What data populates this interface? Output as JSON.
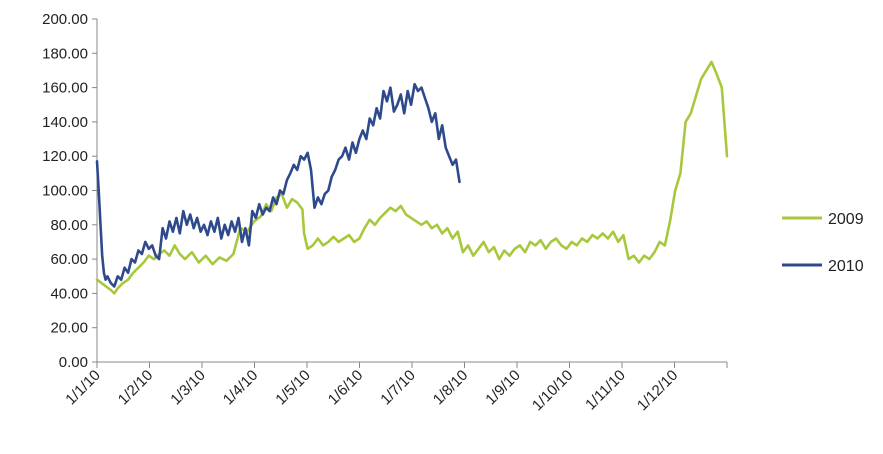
{
  "chart_data": {
    "type": "line",
    "title": "",
    "xlabel": "",
    "ylabel": "",
    "ylim": [
      0,
      200
    ],
    "y_ticks": [
      "0.00",
      "20.00",
      "40.00",
      "60.00",
      "80.00",
      "100.00",
      "120.00",
      "140.00",
      "160.00",
      "180.00",
      "200.00"
    ],
    "x_ticks": [
      "1/1/10",
      "1/2/10",
      "1/3/10",
      "1/4/10",
      "1/5/10",
      "1/6/10",
      "1/7/10",
      "1/8/10",
      "1/9/10",
      "1/10/10",
      "1/11/10",
      "1/12/10"
    ],
    "grid": false,
    "legend_position": "right",
    "series": [
      {
        "name": "2009",
        "color": "#a8c83c",
        "x": [
          0,
          4,
          8,
          10,
          12,
          15,
          18,
          21,
          24,
          27,
          30,
          33,
          36,
          39,
          42,
          45,
          48,
          51,
          55,
          59,
          63,
          67,
          71,
          75,
          79,
          83,
          87,
          91,
          95,
          98,
          101,
          104,
          107,
          110,
          113,
          116,
          119,
          120,
          122,
          125,
          128,
          131,
          134,
          137,
          140,
          143,
          146,
          149,
          152,
          155,
          158,
          161,
          164,
          167,
          170,
          173,
          176,
          179,
          182,
          185,
          188,
          191,
          194,
          197,
          200,
          203,
          206,
          209,
          212,
          215,
          218,
          221,
          224,
          227,
          230,
          233,
          236,
          239,
          242,
          245,
          248,
          251,
          254,
          257,
          260,
          263,
          266,
          269,
          272,
          275,
          278,
          281,
          284,
          287,
          290,
          293,
          296,
          299,
          302,
          305,
          308,
          311,
          314,
          317,
          320,
          323,
          326,
          329,
          332,
          335,
          338,
          341,
          344,
          347,
          350,
          353,
          356,
          359,
          362,
          365
        ],
        "values": [
          48,
          45,
          42,
          40,
          43,
          46,
          48,
          52,
          55,
          58,
          62,
          60,
          63,
          65,
          62,
          68,
          63,
          60,
          64,
          58,
          62,
          57,
          61,
          59,
          63,
          78,
          76,
          82,
          85,
          92,
          88,
          96,
          98,
          90,
          95,
          93,
          89,
          75,
          66,
          68,
          72,
          68,
          70,
          73,
          70,
          72,
          74,
          70,
          72,
          78,
          83,
          80,
          84,
          87,
          90,
          88,
          91,
          86,
          84,
          82,
          80,
          82,
          78,
          80,
          75,
          78,
          72,
          76,
          64,
          68,
          62,
          66,
          70,
          64,
          67,
          60,
          65,
          62,
          66,
          68,
          64,
          70,
          68,
          71,
          66,
          70,
          72,
          68,
          66,
          70,
          68,
          72,
          70,
          74,
          72,
          75,
          72,
          76,
          70,
          74,
          60,
          62,
          58,
          62,
          60,
          64,
          70,
          68,
          82,
          100,
          110,
          140,
          145,
          155,
          165,
          170,
          175,
          168,
          160,
          120
        ]
      },
      {
        "name": "2010",
        "color": "#2e4a8c",
        "x": [
          0,
          1,
          2,
          3,
          4,
          5,
          6,
          8,
          10,
          12,
          14,
          16,
          18,
          20,
          22,
          24,
          26,
          28,
          30,
          32,
          34,
          36,
          38,
          40,
          42,
          44,
          46,
          48,
          50,
          52,
          54,
          56,
          58,
          60,
          62,
          64,
          66,
          68,
          70,
          72,
          74,
          76,
          78,
          80,
          82,
          84,
          86,
          88,
          90,
          92,
          94,
          96,
          98,
          100,
          102,
          104,
          106,
          108,
          110,
          112,
          114,
          116,
          118,
          120,
          122,
          124,
          126,
          128,
          130,
          132,
          134,
          136,
          138,
          140,
          142,
          144,
          146,
          148,
          150,
          152,
          154,
          156,
          158,
          160,
          162,
          164,
          166,
          168,
          170,
          172,
          174,
          176,
          178,
          180,
          182,
          184,
          186,
          188,
          190,
          192,
          194,
          196,
          198,
          200,
          202,
          204,
          206,
          208,
          210
        ],
        "values": [
          117,
          100,
          80,
          62,
          52,
          48,
          50,
          46,
          44,
          50,
          48,
          55,
          52,
          60,
          58,
          65,
          63,
          70,
          66,
          68,
          62,
          60,
          78,
          72,
          82,
          76,
          84,
          75,
          88,
          80,
          86,
          78,
          84,
          76,
          80,
          74,
          82,
          76,
          84,
          72,
          80,
          74,
          82,
          76,
          84,
          70,
          78,
          68,
          88,
          84,
          92,
          86,
          90,
          88,
          96,
          92,
          100,
          98,
          106,
          110,
          115,
          112,
          120,
          118,
          122,
          112,
          90,
          96,
          92,
          98,
          100,
          108,
          112,
          118,
          120,
          125,
          118,
          128,
          122,
          130,
          135,
          130,
          142,
          138,
          148,
          142,
          158,
          152,
          160,
          146,
          150,
          156,
          145,
          158,
          150,
          162,
          158,
          160,
          154,
          148,
          140,
          145,
          130,
          138,
          125,
          120,
          115,
          118,
          105
        ]
      }
    ]
  }
}
